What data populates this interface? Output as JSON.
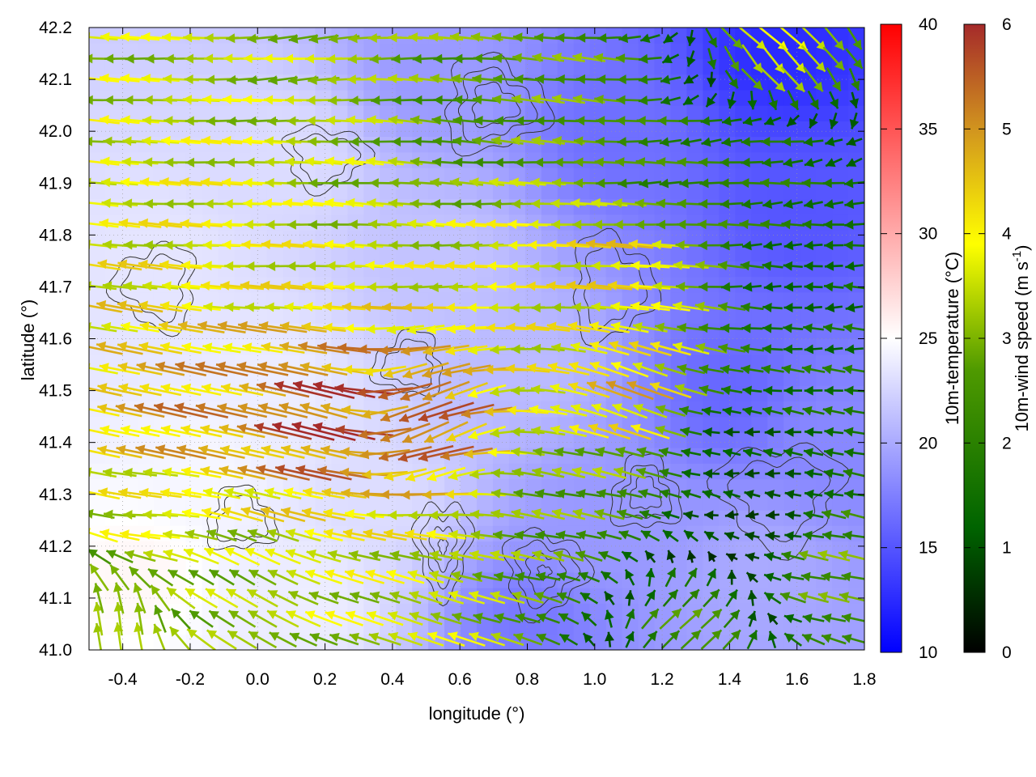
{
  "chart_data": {
    "type": "heatmap",
    "xlabel": "longitude (°)",
    "ylabel": "latitude (°)",
    "xlim": [
      -0.5,
      1.8
    ],
    "ylim": [
      41.0,
      42.2
    ],
    "x_ticks": [
      -0.4,
      -0.2,
      0.0,
      0.2,
      0.4,
      0.6,
      0.8,
      1.0,
      1.2,
      1.4,
      1.6,
      1.8
    ],
    "y_ticks": [
      41.0,
      41.1,
      41.2,
      41.3,
      41.4,
      41.5,
      41.6,
      41.7,
      41.8,
      41.9,
      42.0,
      42.1,
      42.2
    ],
    "grid": true,
    "overlays": [
      "wind vectors",
      "terrain contours"
    ],
    "temperature_scale": {
      "label": "10m-temperature (°C)",
      "range": [
        10,
        40
      ],
      "ticks": [
        10,
        15,
        20,
        25,
        30,
        35,
        40
      ],
      "colors": [
        "#0000ff",
        "#ffffff",
        "#ff0000"
      ]
    },
    "wind_scale": {
      "label": "10m-wind speed (m s",
      "label_sup": "-1",
      "label_end": ")",
      "range": [
        0,
        6
      ],
      "ticks": [
        0,
        1,
        2,
        3,
        4,
        5,
        6
      ],
      "colors": [
        "#000000",
        "#006400",
        "#4f9a00",
        "#ffff00",
        "#d2961e",
        "#a52a2a"
      ]
    },
    "temperature_regions": [
      {
        "lon": -0.35,
        "lat": 41.15,
        "t": 25.5
      },
      {
        "lon": -0.15,
        "lat": 41.35,
        "t": 24.5
      },
      {
        "lon": 0.05,
        "lat": 41.5,
        "t": 24
      },
      {
        "lon": -0.3,
        "lat": 41.75,
        "t": 23.5
      },
      {
        "lon": 0.1,
        "lat": 41.95,
        "t": 23
      },
      {
        "lon": 0.35,
        "lat": 41.3,
        "t": 23
      },
      {
        "lon": 0.55,
        "lat": 41.75,
        "t": 21.5
      },
      {
        "lon": 0.5,
        "lat": 42.1,
        "t": 19
      },
      {
        "lon": 0.8,
        "lat": 41.55,
        "t": 21
      },
      {
        "lon": 0.8,
        "lat": 41.05,
        "t": 17
      },
      {
        "lon": 1.0,
        "lat": 41.25,
        "t": 19
      },
      {
        "lon": 1.05,
        "lat": 42.0,
        "t": 16.5
      },
      {
        "lon": 1.4,
        "lat": 41.5,
        "t": 16
      },
      {
        "lon": 1.6,
        "lat": 41.85,
        "t": 15
      },
      {
        "lon": 1.55,
        "lat": 42.15,
        "t": 12.5
      },
      {
        "lon": 1.5,
        "lat": 41.15,
        "t": 20
      },
      {
        "lon": 1.7,
        "lat": 41.4,
        "t": 18
      },
      {
        "lon": 0.15,
        "lat": 41.1,
        "t": 24
      }
    ],
    "wind_regions": [
      {
        "lon": -0.3,
        "lat": 41.25,
        "u": -3.5,
        "v": 0.2
      },
      {
        "lon": -0.2,
        "lat": 41.45,
        "u": -4.5,
        "v": 1.0
      },
      {
        "lon": 0.2,
        "lat": 41.45,
        "u": -5.5,
        "v": 1.5
      },
      {
        "lon": 0.5,
        "lat": 41.45,
        "u": -5.0,
        "v": -2.0
      },
      {
        "lon": 0.0,
        "lat": 41.8,
        "u": -3.5,
        "v": 0.1
      },
      {
        "lon": 0.3,
        "lat": 41.9,
        "u": -3.0,
        "v": 0.2
      },
      {
        "lon": 0.2,
        "lat": 42.15,
        "u": -3.0,
        "v": -0.2
      },
      {
        "lon": 0.6,
        "lat": 42.0,
        "u": -2.2,
        "v": 0.2
      },
      {
        "lon": 0.8,
        "lat": 41.75,
        "u": -3.6,
        "v": 0.0
      },
      {
        "lon": 1.1,
        "lat": 41.75,
        "u": -4.0,
        "v": 0.3
      },
      {
        "lon": 1.1,
        "lat": 41.5,
        "u": -4.0,
        "v": 1.5
      },
      {
        "lon": 0.9,
        "lat": 41.3,
        "u": -2.5,
        "v": 0.5
      },
      {
        "lon": 1.2,
        "lat": 41.9,
        "u": -2.0,
        "v": 0.0
      },
      {
        "lon": 1.5,
        "lat": 41.95,
        "u": -1.8,
        "v": 0.0
      },
      {
        "lon": 1.6,
        "lat": 41.7,
        "u": -1.2,
        "v": 0.0
      },
      {
        "lon": 1.4,
        "lat": 41.4,
        "u": -1.0,
        "v": 0.1
      },
      {
        "lon": 1.5,
        "lat": 41.25,
        "u": -0.7,
        "v": 0.0
      },
      {
        "lon": 1.3,
        "lat": 41.05,
        "u": 1.8,
        "v": 1.6
      },
      {
        "lon": 1.7,
        "lat": 41.15,
        "u": -2.5,
        "v": 0.5
      },
      {
        "lon": -0.4,
        "lat": 41.05,
        "u": -0.3,
        "v": 3.0
      },
      {
        "lon": -0.1,
        "lat": 41.1,
        "u": -2.5,
        "v": 1.5
      },
      {
        "lon": 0.45,
        "lat": 41.05,
        "u": -3.0,
        "v": 1.0
      },
      {
        "lon": 0.9,
        "lat": 42.1,
        "u": -2.5,
        "v": 0.3
      },
      {
        "lon": 1.55,
        "lat": 42.15,
        "u": 2.5,
        "v": -2.5
      }
    ],
    "contours": [
      {
        "center": [
          0.55,
          41.2
        ],
        "radii": [
          0.08,
          0.09
        ],
        "levels": 4
      },
      {
        "center": [
          0.85,
          41.15
        ],
        "radii": [
          0.12,
          0.08
        ],
        "levels": 4
      },
      {
        "center": [
          0.7,
          42.05
        ],
        "radii": [
          0.15,
          0.09
        ],
        "levels": 3
      },
      {
        "center": [
          1.15,
          41.3
        ],
        "radii": [
          0.1,
          0.07
        ],
        "levels": 3
      },
      {
        "center": [
          0.45,
          41.55
        ],
        "radii": [
          0.1,
          0.06
        ],
        "levels": 2
      },
      {
        "center": [
          -0.3,
          41.7
        ],
        "radii": [
          0.12,
          0.08
        ],
        "levels": 2
      },
      {
        "center": [
          1.55,
          41.3
        ],
        "radii": [
          0.18,
          0.1
        ],
        "levels": 2
      },
      {
        "center": [
          0.2,
          41.95
        ],
        "radii": [
          0.12,
          0.06
        ],
        "levels": 2
      },
      {
        "center": [
          1.05,
          41.7
        ],
        "radii": [
          0.12,
          0.1
        ],
        "levels": 2
      },
      {
        "center": [
          -0.05,
          41.25
        ],
        "radii": [
          0.1,
          0.06
        ],
        "levels": 2
      }
    ]
  }
}
